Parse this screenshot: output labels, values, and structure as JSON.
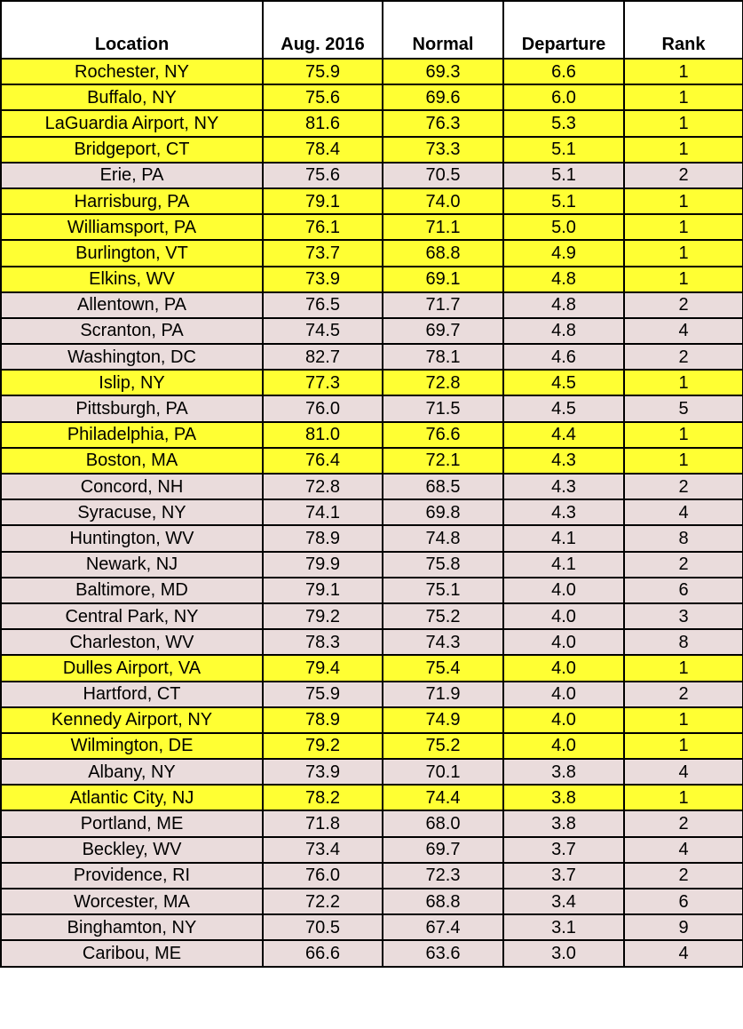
{
  "colors": {
    "rank1_fill": "#ffff33",
    "other_fill": "#eadcdc",
    "header_fill": "#ffffff"
  },
  "table": {
    "headers": [
      "Location",
      "Aug. 2016",
      "Normal",
      "Departure",
      "Rank"
    ],
    "rows": [
      [
        "Rochester, NY",
        "75.9",
        "69.3",
        "6.6",
        "1"
      ],
      [
        "Buffalo, NY",
        "75.6",
        "69.6",
        "6.0",
        "1"
      ],
      [
        "LaGuardia Airport, NY",
        "81.6",
        "76.3",
        "5.3",
        "1"
      ],
      [
        "Bridgeport, CT",
        "78.4",
        "73.3",
        "5.1",
        "1"
      ],
      [
        "Erie, PA",
        "75.6",
        "70.5",
        "5.1",
        "2"
      ],
      [
        "Harrisburg, PA",
        "79.1",
        "74.0",
        "5.1",
        "1"
      ],
      [
        "Williamsport, PA",
        "76.1",
        "71.1",
        "5.0",
        "1"
      ],
      [
        "Burlington, VT",
        "73.7",
        "68.8",
        "4.9",
        "1"
      ],
      [
        "Elkins, WV",
        "73.9",
        "69.1",
        "4.8",
        "1"
      ],
      [
        "Allentown, PA",
        "76.5",
        "71.7",
        "4.8",
        "2"
      ],
      [
        "Scranton, PA",
        "74.5",
        "69.7",
        "4.8",
        "4"
      ],
      [
        "Washington, DC",
        "82.7",
        "78.1",
        "4.6",
        "2"
      ],
      [
        "Islip, NY",
        "77.3",
        "72.8",
        "4.5",
        "1"
      ],
      [
        "Pittsburgh, PA",
        "76.0",
        "71.5",
        "4.5",
        "5"
      ],
      [
        "Philadelphia, PA",
        "81.0",
        "76.6",
        "4.4",
        "1"
      ],
      [
        "Boston, MA",
        "76.4",
        "72.1",
        "4.3",
        "1"
      ],
      [
        "Concord, NH",
        "72.8",
        "68.5",
        "4.3",
        "2"
      ],
      [
        "Syracuse, NY",
        "74.1",
        "69.8",
        "4.3",
        "4"
      ],
      [
        "Huntington, WV",
        "78.9",
        "74.8",
        "4.1",
        "8"
      ],
      [
        "Newark, NJ",
        "79.9",
        "75.8",
        "4.1",
        "2"
      ],
      [
        "Baltimore, MD",
        "79.1",
        "75.1",
        "4.0",
        "6"
      ],
      [
        "Central Park, NY",
        "79.2",
        "75.2",
        "4.0",
        "3"
      ],
      [
        "Charleston, WV",
        "78.3",
        "74.3",
        "4.0",
        "8"
      ],
      [
        "Dulles Airport, VA",
        "79.4",
        "75.4",
        "4.0",
        "1"
      ],
      [
        "Hartford, CT",
        "75.9",
        "71.9",
        "4.0",
        "2"
      ],
      [
        "Kennedy Airport, NY",
        "78.9",
        "74.9",
        "4.0",
        "1"
      ],
      [
        "Wilmington, DE",
        "79.2",
        "75.2",
        "4.0",
        "1"
      ],
      [
        "Albany, NY",
        "73.9",
        "70.1",
        "3.8",
        "4"
      ],
      [
        "Atlantic City, NJ",
        "78.2",
        "74.4",
        "3.8",
        "1"
      ],
      [
        "Portland, ME",
        "71.8",
        "68.0",
        "3.8",
        "2"
      ],
      [
        "Beckley, WV",
        "73.4",
        "69.7",
        "3.7",
        "4"
      ],
      [
        "Providence, RI",
        "76.0",
        "72.3",
        "3.7",
        "2"
      ],
      [
        "Worcester, MA",
        "72.2",
        "68.8",
        "3.4",
        "6"
      ],
      [
        "Binghamton, NY",
        "70.5",
        "67.4",
        "3.1",
        "9"
      ],
      [
        "Caribou, ME",
        "66.6",
        "63.6",
        "3.0",
        "4"
      ]
    ]
  }
}
